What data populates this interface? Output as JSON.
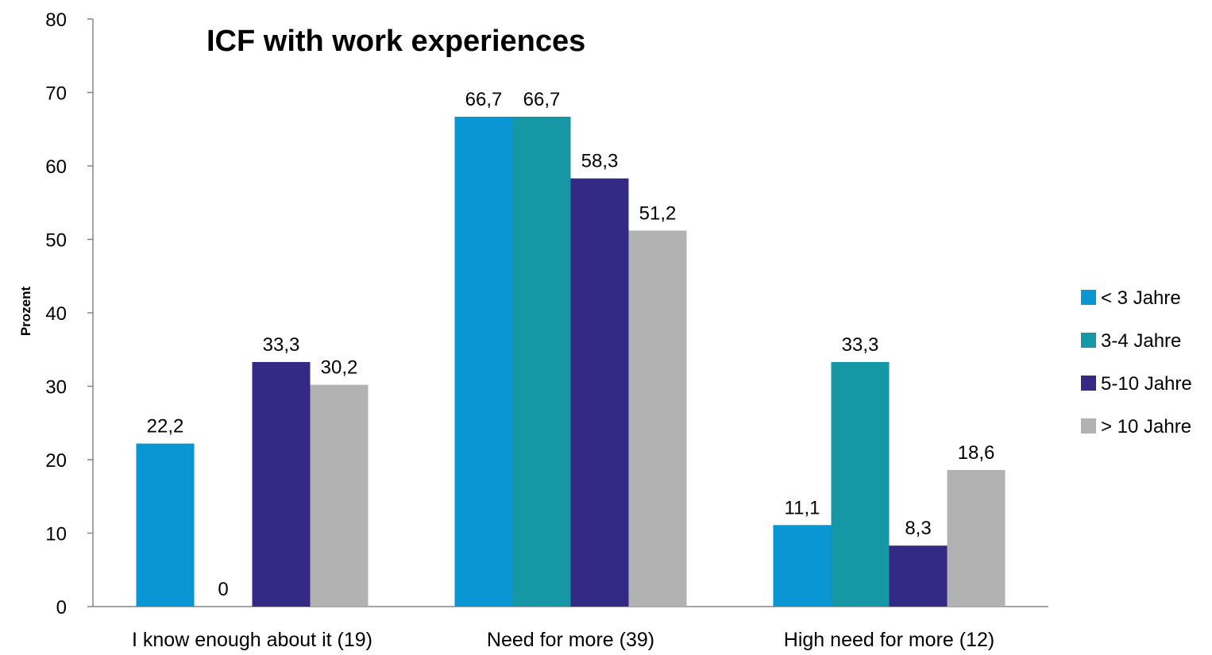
{
  "chart_data": {
    "type": "bar",
    "title": "ICF with work experiences",
    "xlabel": "",
    "ylabel": "Prozent",
    "ylim": [
      0,
      80
    ],
    "yticks": [
      0,
      10,
      20,
      30,
      40,
      50,
      60,
      70,
      80
    ],
    "categories": [
      "I know enough about it (19)",
      "Need for more (39)",
      "High need for more (12)"
    ],
    "series": [
      {
        "name": "< 3 Jahre",
        "color": "#0A96D2",
        "values": [
          22.2,
          66.7,
          11.1
        ],
        "labels": [
          "22,2",
          "66,7",
          "11,1"
        ]
      },
      {
        "name": "3-4 Jahre",
        "color": "#1597A5",
        "values": [
          0,
          66.7,
          33.3
        ],
        "labels": [
          "0",
          "66,7",
          "33,3"
        ]
      },
      {
        "name": "5-10 Jahre",
        "color": "#332A86",
        "values": [
          33.3,
          58.3,
          8.3
        ],
        "labels": [
          "33,3",
          "58,3",
          "8,3"
        ]
      },
      {
        "name": "> 10 Jahre",
        "color": "#B2B2B2",
        "values": [
          30.2,
          51.2,
          18.6
        ],
        "labels": [
          "30,2",
          "51,2",
          "18,6"
        ]
      }
    ],
    "legend_position": "right",
    "grid": false
  }
}
